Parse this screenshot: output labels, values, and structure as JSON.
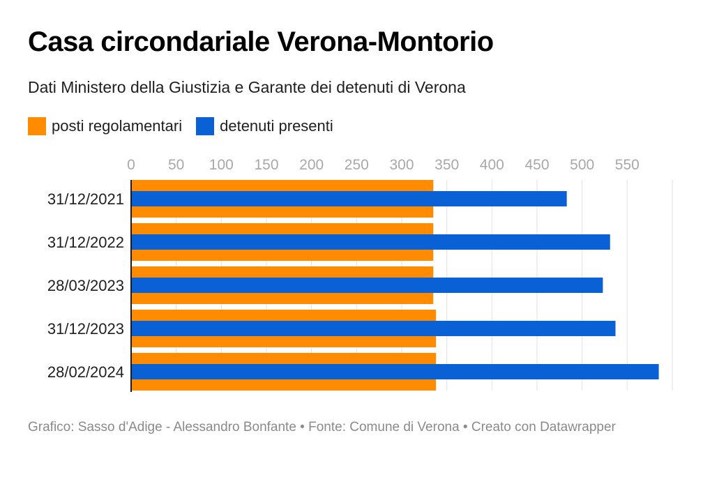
{
  "header": {
    "title": "Casa circondariale Verona-Montorio",
    "subtitle": "Dati Ministero della Giustizia e Garante dei detenuti di Verona"
  },
  "legend": {
    "items": [
      {
        "label": "posti regolamentari",
        "color": "#ff8c00"
      },
      {
        "label": "detenuti presenti",
        "color": "#0a61d6"
      }
    ]
  },
  "footer": {
    "credit": "Grafico: Sasso d'Adige - Alessandro Bonfante • Fonte: Comune di Verona • Creato con Datawrapper"
  },
  "chart_data": {
    "type": "bar",
    "orientation": "horizontal",
    "title": "Casa circondariale Verona-Montorio",
    "subtitle": "Dati Ministero della Giustizia e Garante dei detenuti di Verona",
    "categories": [
      "31/12/2021",
      "31/12/2022",
      "28/03/2023",
      "31/12/2023",
      "28/02/2024"
    ],
    "series": [
      {
        "name": "posti regolamentari",
        "color": "#ff8c00",
        "values": [
          335,
          335,
          335,
          338,
          338
        ]
      },
      {
        "name": "detenuti presenti",
        "color": "#0a61d6",
        "values": [
          483,
          531,
          523,
          537,
          585
        ]
      }
    ],
    "xlim": [
      0,
      600
    ],
    "xticks": [
      0,
      50,
      100,
      150,
      200,
      250,
      300,
      350,
      400,
      450,
      500,
      550
    ],
    "grid": true,
    "legend_position": "top-left",
    "xlabel": "",
    "ylabel": ""
  }
}
